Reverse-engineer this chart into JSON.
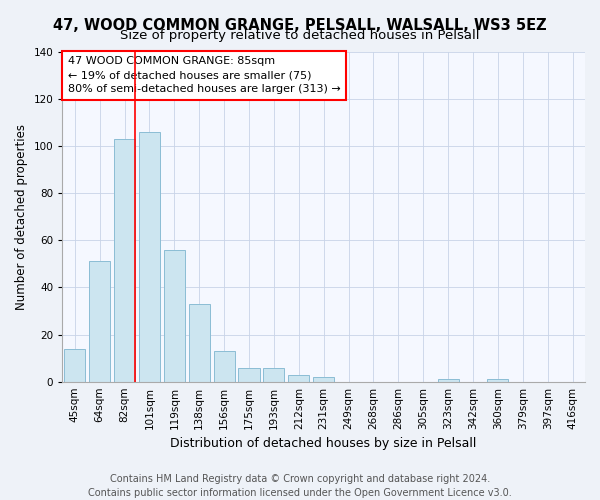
{
  "title": "47, WOOD COMMON GRANGE, PELSALL, WALSALL, WS3 5EZ",
  "subtitle": "Size of property relative to detached houses in Pelsall",
  "xlabel": "Distribution of detached houses by size in Pelsall",
  "ylabel": "Number of detached properties",
  "bar_labels": [
    "45sqm",
    "64sqm",
    "82sqm",
    "101sqm",
    "119sqm",
    "138sqm",
    "156sqm",
    "175sqm",
    "193sqm",
    "212sqm",
    "231sqm",
    "249sqm",
    "268sqm",
    "286sqm",
    "305sqm",
    "323sqm",
    "342sqm",
    "360sqm",
    "379sqm",
    "397sqm",
    "416sqm"
  ],
  "bar_values": [
    14,
    51,
    103,
    106,
    56,
    33,
    13,
    6,
    6,
    3,
    2,
    0,
    0,
    0,
    0,
    1,
    0,
    1,
    0,
    0,
    0
  ],
  "bar_color": "#cce5f0",
  "bar_edge_color": "#8bbdd4",
  "vline_color": "red",
  "vline_position": 2.43,
  "annotation_text": "47 WOOD COMMON GRANGE: 85sqm\n← 19% of detached houses are smaller (75)\n80% of semi-detached houses are larger (313) →",
  "annotation_box_color": "white",
  "annotation_box_edge_color": "red",
  "ylim": [
    0,
    140
  ],
  "yticks": [
    0,
    20,
    40,
    60,
    80,
    100,
    120,
    140
  ],
  "footer_line1": "Contains HM Land Registry data © Crown copyright and database right 2024.",
  "footer_line2": "Contains public sector information licensed under the Open Government Licence v3.0.",
  "bg_color": "#eef2f8",
  "plot_bg_color": "#f5f8ff",
  "grid_color": "#c8d4e8",
  "title_fontsize": 10.5,
  "subtitle_fontsize": 9.5,
  "xlabel_fontsize": 9,
  "ylabel_fontsize": 8.5,
  "tick_fontsize": 7.5,
  "annotation_fontsize": 8,
  "footer_fontsize": 7
}
